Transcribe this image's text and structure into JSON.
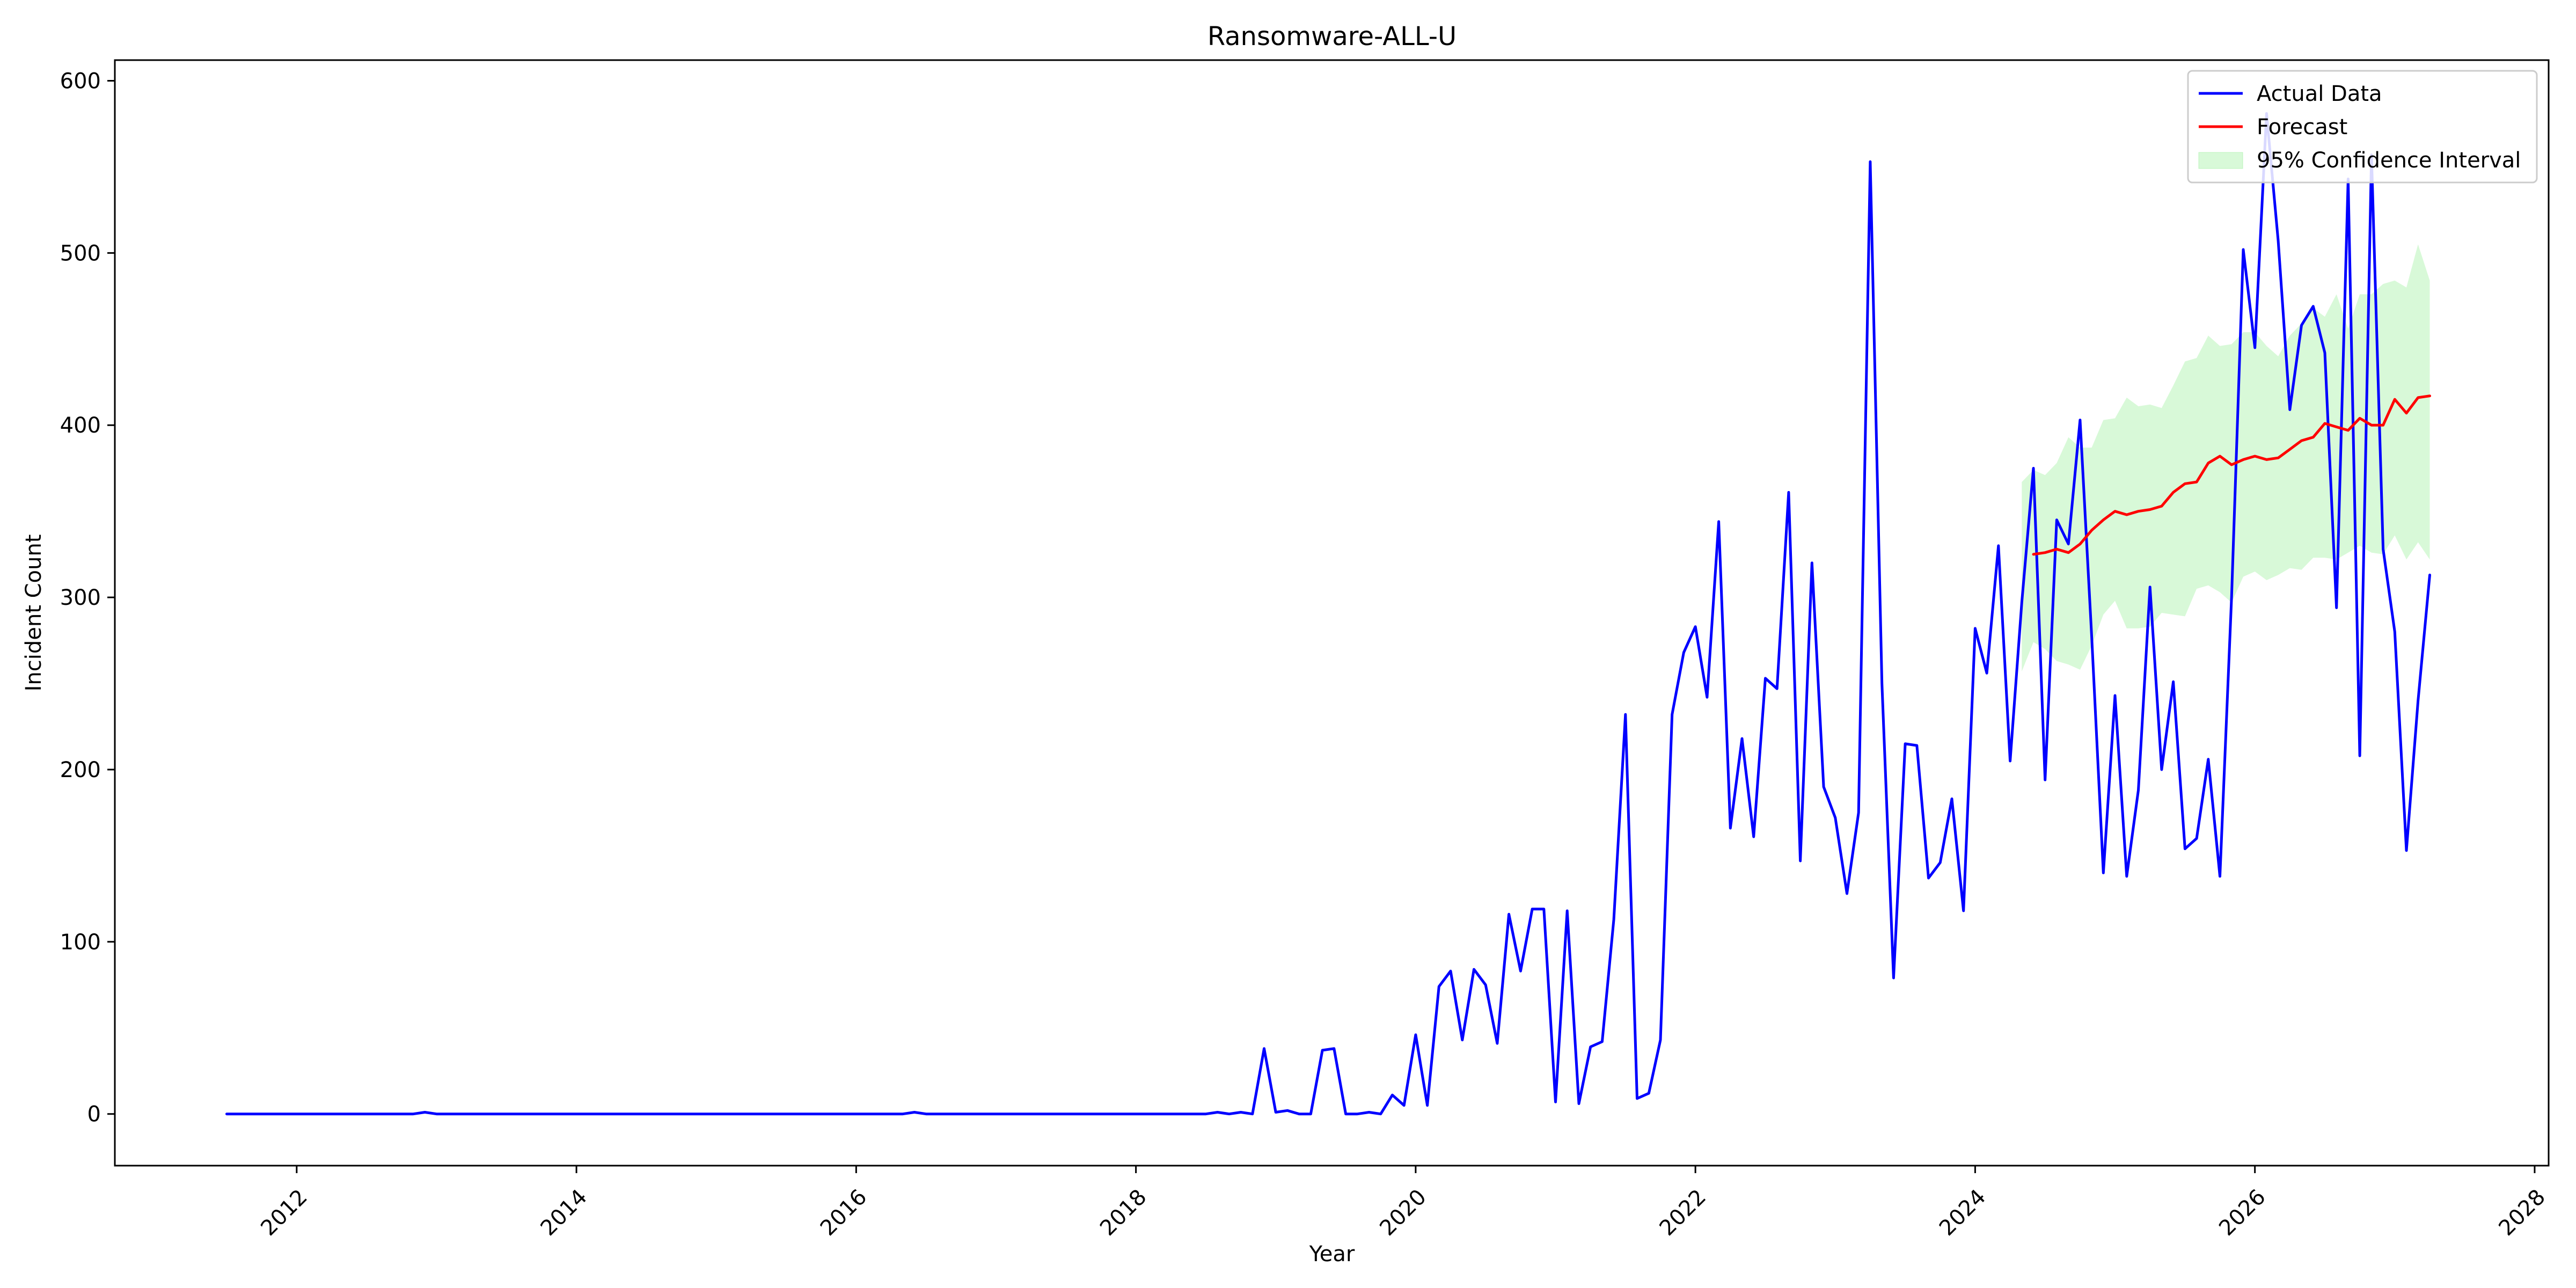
{
  "chart_data": {
    "type": "line",
    "title": "Ransomware-ALL-U",
    "xlabel": "Year",
    "ylabel": "Incident Count",
    "xlim": [
      2010.7,
      2028.1
    ],
    "ylim": [
      -30,
      612
    ],
    "x_ticks": [
      2012,
      2014,
      2016,
      2018,
      2020,
      2022,
      2024,
      2026,
      2028
    ],
    "y_ticks": [
      0,
      100,
      200,
      300,
      400,
      500,
      600
    ],
    "grid": false,
    "legend": {
      "placement": "top-right",
      "entries": [
        {
          "label": "Actual Data",
          "color": "#0000ff",
          "kind": "line"
        },
        {
          "label": "Forecast",
          "color": "#ff0000",
          "kind": "line"
        },
        {
          "label": "95% Confidence Interval",
          "color": "#90ee90",
          "kind": "area"
        }
      ]
    },
    "series": [
      {
        "name": "Actual Data",
        "color": "#0000ff",
        "x_start": "2011-07",
        "values": [
          0,
          0,
          0,
          0,
          0,
          0,
          0,
          0,
          0,
          0,
          0,
          0,
          0,
          0,
          0,
          0,
          0,
          1,
          0,
          0,
          0,
          0,
          0,
          0,
          0,
          0,
          0,
          0,
          0,
          0,
          0,
          0,
          0,
          0,
          0,
          0,
          0,
          0,
          0,
          0,
          0,
          0,
          0,
          0,
          0,
          0,
          0,
          0,
          0,
          0,
          0,
          0,
          0,
          0,
          0,
          0,
          0,
          0,
          0,
          1,
          0,
          0,
          0,
          0,
          0,
          0,
          0,
          0,
          0,
          0,
          0,
          0,
          0,
          0,
          0,
          0,
          0,
          0,
          0,
          0,
          0,
          0,
          0,
          0,
          0,
          1,
          0,
          1,
          0,
          38,
          1,
          2,
          0,
          0,
          37,
          38,
          0,
          0,
          1,
          0,
          11,
          5,
          46,
          5,
          74,
          83,
          43,
          84,
          75,
          41,
          116,
          83,
          119,
          119,
          7,
          118,
          6,
          39,
          42,
          113,
          232,
          9,
          12,
          43,
          232,
          268,
          283,
          242,
          344,
          166,
          218,
          161,
          253,
          247,
          361,
          147,
          320,
          190,
          172,
          128,
          175,
          553,
          250,
          79,
          215,
          214,
          137,
          146,
          183,
          118,
          282,
          256,
          330,
          205,
          297,
          375,
          194,
          345,
          331,
          403,
          277,
          140,
          243,
          138,
          188,
          306,
          200,
          251,
          154,
          160,
          206,
          138,
          300,
          502,
          445,
          581,
          507,
          409,
          458,
          469,
          442,
          294,
          543,
          208,
          557,
          328,
          280,
          153,
          240,
          313
        ]
      },
      {
        "name": "Forecast",
        "color": "#ff0000",
        "x_start": "2024-06",
        "values": [
          325,
          326,
          328,
          326,
          331,
          339,
          345,
          350,
          348,
          350,
          351,
          353,
          361,
          366,
          367,
          378,
          382,
          377,
          380,
          382,
          380,
          381,
          386,
          391,
          393,
          401,
          399,
          397,
          404,
          400,
          400,
          415,
          407,
          416,
          417
        ]
      },
      {
        "name": "95% Confidence Interval",
        "color": "#90ee90",
        "x_start": "2024-05",
        "lower": [
          257,
          274,
          270,
          263,
          261,
          258,
          272,
          290,
          298,
          282,
          282,
          283,
          291,
          290,
          289,
          305,
          307,
          303,
          297,
          312,
          315,
          310,
          313,
          317,
          316,
          323,
          323,
          322,
          326,
          330,
          326,
          325,
          336,
          322,
          332,
          322
        ],
        "upper": [
          367,
          374,
          371,
          378,
          393,
          387,
          387,
          403,
          404,
          416,
          411,
          412,
          410,
          423,
          437,
          439,
          452,
          446,
          447,
          454,
          454,
          446,
          440,
          452,
          459,
          468,
          463,
          476,
          456,
          476,
          476,
          482,
          484,
          480,
          505,
          484
        ]
      }
    ]
  }
}
